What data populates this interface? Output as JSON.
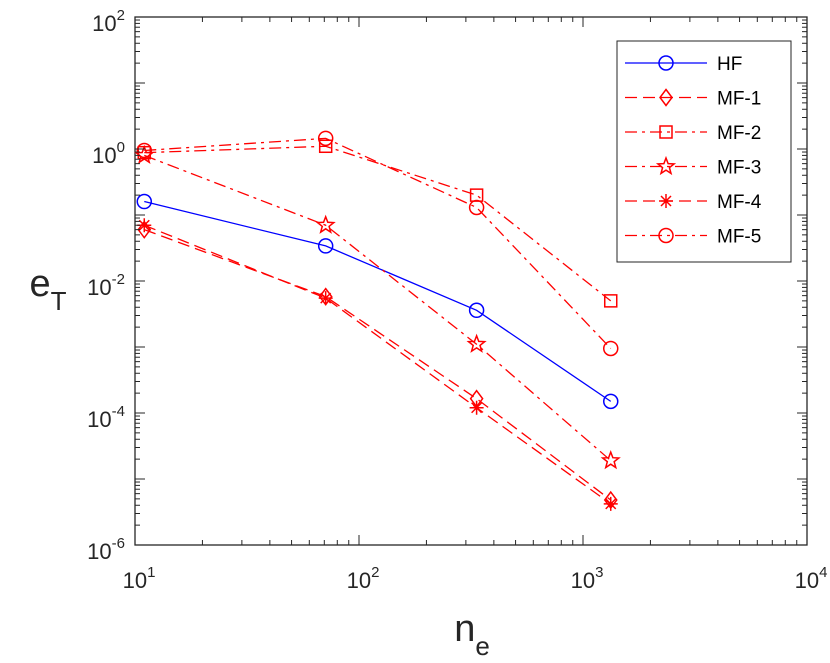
{
  "chart_data": {
    "type": "line",
    "title": "",
    "xscale": "log",
    "yscale": "log",
    "xlim": [
      10,
      10000
    ],
    "ylim": [
      1e-06,
      100
    ],
    "xlabel": {
      "base": "n",
      "sub": "e"
    },
    "ylabel": {
      "base": "e",
      "sub": "T"
    },
    "x_ticks": [
      {
        "base": "10",
        "exp": "1",
        "value": 10
      },
      {
        "base": "10",
        "exp": "2",
        "value": 100
      },
      {
        "base": "10",
        "exp": "3",
        "value": 1000
      },
      {
        "base": "10",
        "exp": "4",
        "value": 10000
      }
    ],
    "y_ticks": [
      {
        "base": "10",
        "exp": "-6",
        "value": 1e-06
      },
      {
        "base": "10",
        "exp": "-4",
        "value": 0.0001
      },
      {
        "base": "10",
        "exp": "-2",
        "value": 0.01
      },
      {
        "base": "10",
        "exp": "0",
        "value": 1
      },
      {
        "base": "10",
        "exp": "2",
        "value": 100
      }
    ],
    "legend_position": "top-right",
    "x": [
      11,
      71,
      335,
      1330
    ],
    "series": [
      {
        "name": "HF",
        "color": "#0000ff",
        "dash": "solid",
        "marker": "circle",
        "values": [
          0.16,
          0.034,
          0.0036,
          0.00015
        ]
      },
      {
        "name": "MF-1",
        "color": "#ff0000",
        "dash": "dashed",
        "marker": "diamond",
        "values": [
          0.06,
          0.0058,
          0.000165,
          4.8e-06
        ]
      },
      {
        "name": "MF-2",
        "color": "#ff0000",
        "dash": "dashdot",
        "marker": "square",
        "values": [
          0.88,
          1.1,
          0.2,
          0.005
        ]
      },
      {
        "name": "MF-3",
        "color": "#ff0000",
        "dash": "dashdot",
        "marker": "star",
        "values": [
          0.8,
          0.07,
          0.0011,
          1.9e-05
        ]
      },
      {
        "name": "MF-4",
        "color": "#ff0000",
        "dash": "dashed",
        "marker": "asterisk",
        "values": [
          0.07,
          0.0055,
          0.00012,
          4.2e-06
        ]
      },
      {
        "name": "MF-5",
        "color": "#ff0000",
        "dash": "dashdot",
        "marker": "circle",
        "values": [
          0.95,
          1.45,
          0.13,
          0.00095
        ]
      }
    ]
  }
}
